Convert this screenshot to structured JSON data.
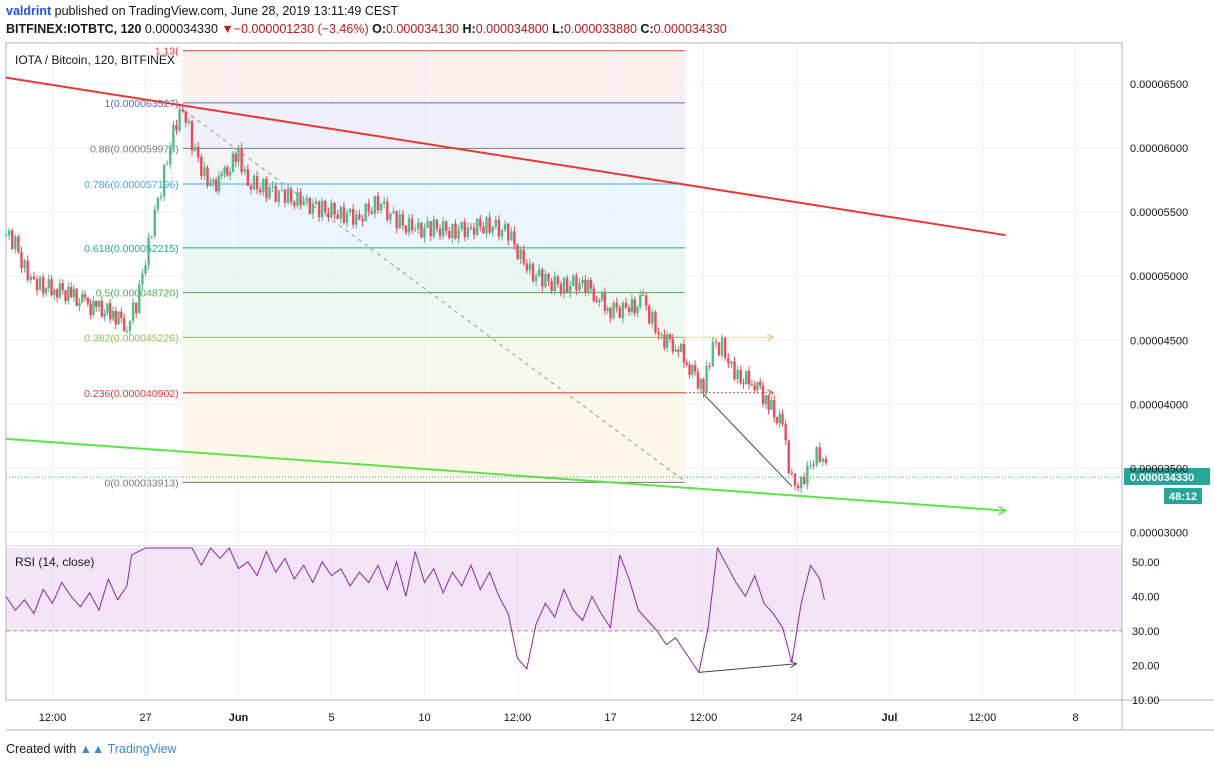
{
  "header": {
    "author": "valdrint",
    "published_text": "published on TradingView.com, June 28, 2019 13:11:49 CEST",
    "symbol": "BITFINEX:IOTBTC, 120",
    "last_price": "0.000034330",
    "change_marker": "▼",
    "change": "−0.000001230 (−3.46%)",
    "open_label": "O:",
    "open_value": "0.000034130",
    "high_label": "H:",
    "high_value": "0.000034800",
    "low_label": "L:",
    "low_value": "0.000033880",
    "close_label": "C:",
    "close_value": "0.000034330"
  },
  "footer": {
    "created_with": "Created with",
    "brand": "TradingView"
  },
  "chart_data": {
    "type": "line",
    "title": "IOTA / Bitcoin, 120, BITFINEX",
    "price_axis": {
      "ylim": [
        2.91e-05,
        6.82e-05
      ],
      "ticks": [
        "0.00006500",
        "0.00006000",
        "0.00005500",
        "0.00005000",
        "0.00004500",
        "0.00004000",
        "0.00003500",
        "0.00003000"
      ],
      "tick_values": [
        6.5e-05,
        6e-05,
        5.5e-05,
        5e-05,
        4.5e-05,
        4e-05,
        3.5e-05,
        3e-05
      ]
    },
    "time_axis": {
      "labels": [
        "12:00",
        "27",
        "Jun",
        "5",
        "10",
        "12:00",
        "17",
        "12:00",
        "24",
        "Jul",
        "12:00",
        "8"
      ],
      "label_positions": [
        0.5,
        1.5,
        2.5,
        3.5,
        4.5,
        5.5,
        6.5,
        7.5,
        8.5,
        9.5,
        10.5,
        11.5
      ],
      "xlim": [
        0,
        12
      ]
    },
    "last_price_label": "0.000034330",
    "countdown_label": "48:12",
    "fibonacci": {
      "x_range": [
        1.9,
        7.3
      ],
      "levels": [
        {
          "label": "1.13(",
          "price": 6.76e-05,
          "color": "#e53935"
        },
        {
          "label": "1(0.000063527)",
          "price": 6.3527e-05,
          "color": "#5c6bc0"
        },
        {
          "label": "0.88(0.000059973)",
          "price": 5.9973e-05,
          "color": "#787b86"
        },
        {
          "label": "0.786(0.000057196)",
          "price": 5.7196e-05,
          "color": "#42a5f5"
        },
        {
          "label": "0.618(0.000052215)",
          "price": 5.2215e-05,
          "color": "#26a69a"
        },
        {
          "label": "0.5(0.000048720)",
          "price": 4.872e-05,
          "color": "#4caf50"
        },
        {
          "label": "0.382(0.000045226)",
          "price": 4.5226e-05,
          "color": "#8bc34a"
        },
        {
          "label": "0.236(0.000040902)",
          "price": 4.0902e-05,
          "color": "#e53935"
        },
        {
          "label": "0(0.000033913)",
          "price": 3.3913e-05,
          "color": "#787b86"
        }
      ]
    },
    "series": [
      {
        "kind": "candles",
        "values": [
          [
            0.0,
            5.32e-05
          ],
          [
            0.1,
            5.25e-05
          ],
          [
            0.2,
            5.06e-05
          ],
          [
            0.3,
            4.97e-05
          ],
          [
            0.4,
            4.92e-05
          ],
          [
            0.55,
            4.9e-05
          ],
          [
            0.7,
            4.85e-05
          ],
          [
            0.85,
            4.78e-05
          ],
          [
            1.0,
            4.74e-05
          ],
          [
            1.15,
            4.71e-05
          ],
          [
            1.3,
            4.62e-05
          ],
          [
            1.4,
            4.78e-05
          ],
          [
            1.5,
            5.11e-05
          ],
          [
            1.6,
            5.48e-05
          ],
          [
            1.7,
            5.8e-05
          ],
          [
            1.8,
            6.15e-05
          ],
          [
            1.9,
            6.32e-05
          ],
          [
            2.0,
            6.05e-05
          ],
          [
            2.1,
            5.82e-05
          ],
          [
            2.2,
            5.7e-05
          ],
          [
            2.35,
            5.78e-05
          ],
          [
            2.5,
            5.96e-05
          ],
          [
            2.6,
            5.73e-05
          ],
          [
            2.8,
            5.68e-05
          ],
          [
            3.0,
            5.62e-05
          ],
          [
            3.2,
            5.57e-05
          ],
          [
            3.4,
            5.52e-05
          ],
          [
            3.6,
            5.49e-05
          ],
          [
            3.8,
            5.46e-05
          ],
          [
            4.0,
            5.58e-05
          ],
          [
            4.2,
            5.43e-05
          ],
          [
            4.4,
            5.36e-05
          ],
          [
            4.6,
            5.38e-05
          ],
          [
            4.8,
            5.35e-05
          ],
          [
            5.0,
            5.38e-05
          ],
          [
            5.2,
            5.4e-05
          ],
          [
            5.4,
            5.34e-05
          ],
          [
            5.6,
            5.05e-05
          ],
          [
            5.8,
            4.96e-05
          ],
          [
            6.0,
            4.92e-05
          ],
          [
            6.2,
            4.96e-05
          ],
          [
            6.35,
            4.85e-05
          ],
          [
            6.5,
            4.74e-05
          ],
          [
            6.7,
            4.74e-05
          ],
          [
            6.85,
            4.8e-05
          ],
          [
            6.95,
            4.65e-05
          ],
          [
            7.05,
            4.52e-05
          ],
          [
            7.2,
            4.47e-05
          ],
          [
            7.35,
            4.3e-05
          ],
          [
            7.5,
            4.12e-05
          ],
          [
            7.6,
            4.45e-05
          ],
          [
            7.7,
            4.45e-05
          ],
          [
            7.8,
            4.3e-05
          ],
          [
            7.9,
            4.2e-05
          ],
          [
            8.05,
            4.18e-05
          ],
          [
            8.2,
            4e-05
          ],
          [
            8.35,
            3.82e-05
          ],
          [
            8.45,
            3.39e-05
          ],
          [
            8.55,
            3.39e-05
          ],
          [
            8.65,
            3.55e-05
          ],
          [
            8.75,
            3.62e-05
          ],
          [
            8.85,
            3.43e-05
          ]
        ]
      },
      {
        "kind": "indicator",
        "values": [
          [
            0.0,
            40
          ],
          [
            0.1,
            36
          ],
          [
            0.2,
            39
          ],
          [
            0.3,
            35
          ],
          [
            0.4,
            42
          ],
          [
            0.5,
            38
          ],
          [
            0.6,
            44
          ],
          [
            0.7,
            40
          ],
          [
            0.8,
            37
          ],
          [
            0.9,
            41
          ],
          [
            1.0,
            36
          ],
          [
            1.1,
            45
          ],
          [
            1.2,
            39
          ],
          [
            1.3,
            43
          ],
          [
            1.35,
            52
          ],
          [
            1.5,
            65
          ],
          [
            1.7,
            72
          ],
          [
            1.9,
            68
          ],
          [
            2.0,
            55
          ],
          [
            2.1,
            49
          ],
          [
            2.2,
            58
          ],
          [
            2.3,
            51
          ],
          [
            2.4,
            55
          ],
          [
            2.5,
            48
          ],
          [
            2.6,
            50
          ],
          [
            2.7,
            46
          ],
          [
            2.8,
            53
          ],
          [
            2.9,
            47
          ],
          [
            3.0,
            51
          ],
          [
            3.1,
            45
          ],
          [
            3.2,
            49
          ],
          [
            3.3,
            44
          ],
          [
            3.4,
            50
          ],
          [
            3.5,
            46
          ],
          [
            3.6,
            48
          ],
          [
            3.7,
            43
          ],
          [
            3.8,
            47
          ],
          [
            3.9,
            44
          ],
          [
            4.0,
            49
          ],
          [
            4.1,
            42
          ],
          [
            4.2,
            50
          ],
          [
            4.3,
            40
          ],
          [
            4.4,
            53
          ],
          [
            4.5,
            44
          ],
          [
            4.6,
            48
          ],
          [
            4.7,
            41
          ],
          [
            4.8,
            47
          ],
          [
            4.9,
            43
          ],
          [
            5.0,
            49
          ],
          [
            5.1,
            42
          ],
          [
            5.2,
            47
          ],
          [
            5.3,
            40
          ],
          [
            5.4,
            35
          ],
          [
            5.5,
            22
          ],
          [
            5.6,
            19
          ],
          [
            5.7,
            32
          ],
          [
            5.8,
            38
          ],
          [
            5.9,
            34
          ],
          [
            6.0,
            42
          ],
          [
            6.1,
            36
          ],
          [
            6.2,
            33
          ],
          [
            6.3,
            40
          ],
          [
            6.4,
            35
          ],
          [
            6.5,
            31
          ],
          [
            6.6,
            52
          ],
          [
            6.7,
            45
          ],
          [
            6.8,
            36
          ],
          [
            6.9,
            33
          ],
          [
            7.0,
            30
          ],
          [
            7.1,
            26
          ],
          [
            7.2,
            28
          ],
          [
            7.3,
            24
          ],
          [
            7.4,
            20
          ],
          [
            7.45,
            18
          ],
          [
            7.55,
            31
          ],
          [
            7.65,
            55
          ],
          [
            7.75,
            49
          ],
          [
            7.85,
            44
          ],
          [
            7.95,
            40
          ],
          [
            8.05,
            46
          ],
          [
            8.15,
            38
          ],
          [
            8.25,
            35
          ],
          [
            8.35,
            31
          ],
          [
            8.45,
            21
          ],
          [
            8.55,
            38
          ],
          [
            8.65,
            49
          ],
          [
            8.75,
            45
          ],
          [
            8.8,
            39
          ]
        ]
      }
    ],
    "rsi": {
      "label": "RSI (14, close)",
      "ylim": [
        10,
        54
      ],
      "ticks": [
        "50.00",
        "40.00",
        "30.00",
        "20.00",
        "10.00"
      ],
      "tick_values": [
        50,
        40,
        30,
        20,
        10
      ],
      "band": [
        30,
        70
      ]
    },
    "trendlines": {
      "resistance": {
        "color": "#e53935",
        "points": [
          [
            0.0,
            6.55e-05
          ],
          [
            10.75,
            5.32e-05
          ]
        ]
      },
      "support": {
        "color": "#5ee34b",
        "points": [
          [
            0.0,
            3.73e-05
          ],
          [
            10.75,
            3.17e-05
          ]
        ]
      },
      "fib_diagonal": {
        "points": [
          [
            1.85,
            6.33e-05
          ],
          [
            7.3,
            3.4e-05
          ]
        ]
      },
      "price_drop": {
        "points": [
          [
            7.5,
            4.08e-05
          ],
          [
            8.45,
            3.36e-05
          ]
        ]
      },
      "rsi_divergence": {
        "points": [
          [
            7.45,
            18
          ],
          [
            8.5,
            20.5
          ]
        ]
      }
    },
    "projections": [
      {
        "price": 4.5226e-05,
        "x_range": [
          7.3,
          8.25
        ]
      },
      {
        "price": 4.0902e-05,
        "x_range": [
          7.3,
          8.25
        ]
      }
    ]
  }
}
